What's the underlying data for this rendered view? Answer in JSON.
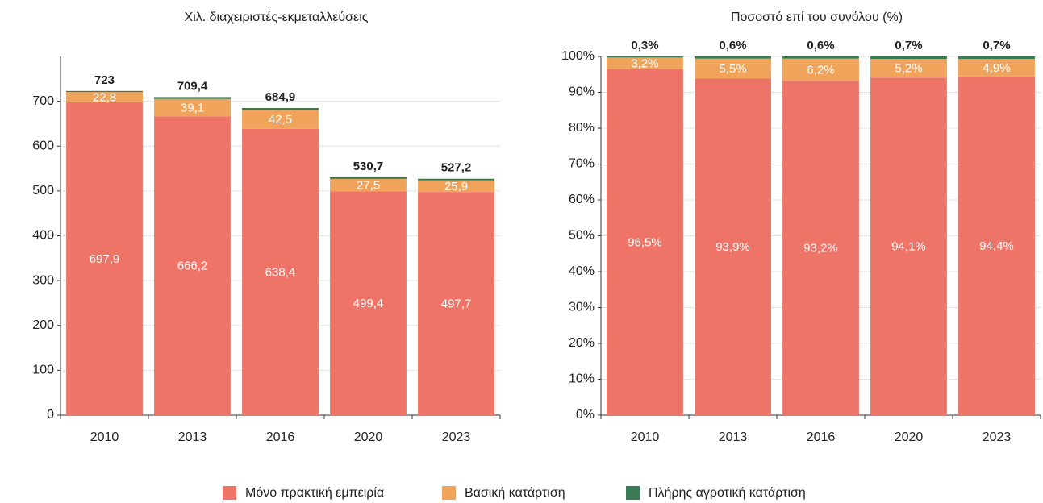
{
  "chart_data": [
    {
      "type": "stacked-bar",
      "title": "Χιλ. διαχειριστές-εκμεταλλεύσεις",
      "categories": [
        "2010",
        "2013",
        "2016",
        "2020",
        "2023"
      ],
      "series": [
        {
          "name": "Μόνο πρακτική εμπειρία",
          "color": "#ef7468",
          "values": [
            697.9,
            666.2,
            638.4,
            499.4,
            497.7
          ],
          "value_labels": [
            "697,9",
            "666,2",
            "638,4",
            "499,4",
            "497,7"
          ]
        },
        {
          "name": "Βασική κατάρτιση",
          "color": "#f0a35a",
          "values": [
            22.8,
            39.1,
            42.5,
            27.5,
            25.9
          ],
          "value_labels": [
            "22,8",
            "39,1",
            "42,5",
            "27,5",
            "25,9"
          ]
        },
        {
          "name": "Πλήρης αγροτική κατάρτιση",
          "color": "#3a7a52",
          "values": [
            2.3,
            4.1,
            4.0,
            3.8,
            3.6
          ]
        }
      ],
      "totals": [
        723,
        709.4,
        684.9,
        530.7,
        527.2
      ],
      "total_labels": [
        "723",
        "709,4",
        "684,9",
        "530,7",
        "527,2"
      ],
      "ylim": [
        0,
        800
      ],
      "yticks": [
        0,
        100,
        200,
        300,
        400,
        500,
        600,
        700
      ],
      "grid": true
    },
    {
      "type": "stacked-bar",
      "title": "Ποσοστό επί του συνόλου (%)",
      "categories": [
        "2010",
        "2013",
        "2016",
        "2020",
        "2023"
      ],
      "series": [
        {
          "color": "#ef7468",
          "values": [
            96.5,
            93.9,
            93.2,
            94.1,
            94.4
          ],
          "value_labels": [
            "96,5%",
            "93,9%",
            "93,2%",
            "94,1%",
            "94,4%"
          ]
        },
        {
          "color": "#f0a35a",
          "values": [
            3.2,
            5.5,
            6.2,
            5.2,
            4.9
          ],
          "value_labels": [
            "3,2%",
            "5,5%",
            "6,2%",
            "5,2%",
            "4,9%"
          ]
        },
        {
          "color": "#3a7a52",
          "values": [
            0.3,
            0.6,
            0.6,
            0.7,
            0.7
          ],
          "value_labels": [
            "0,3%",
            "0,6%",
            "0,6%",
            "0,7%",
            "0,7%"
          ]
        }
      ],
      "ylim": [
        0,
        100
      ],
      "yticks": [
        {
          "value": 0,
          "label": "0%"
        },
        {
          "value": 10,
          "label": "10%"
        },
        {
          "value": 20,
          "label": "20%"
        },
        {
          "value": 30,
          "label": "30%"
        },
        {
          "value": 40,
          "label": "40%"
        },
        {
          "value": 50,
          "label": "50%"
        },
        {
          "value": 60,
          "label": "60%"
        },
        {
          "value": 70,
          "label": "70%"
        },
        {
          "value": 80,
          "label": "80%"
        },
        {
          "value": 90,
          "label": "90%"
        },
        {
          "value": 100,
          "label": "100%"
        }
      ],
      "grid": true
    }
  ]
}
